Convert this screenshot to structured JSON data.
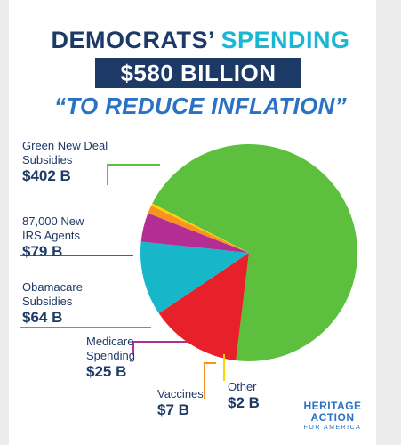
{
  "header": {
    "title_part1": "DEMOCRATS’",
    "title_part2": "SPENDING",
    "amount": "$580 BILLION",
    "subtitle": "“TO REDUCE INFLATION”"
  },
  "chart_data": {
    "type": "pie",
    "title": "DEMOCRATS’ SPENDING $580 BILLION “TO REDUCE INFLATION”",
    "total": 580,
    "unit": "B",
    "slices": [
      {
        "name": "Green New Deal\nSubsidies",
        "value": 402,
        "label": "$402 B",
        "color": "#5cbf3e"
      },
      {
        "name": "87,000 New\nIRS Agents",
        "value": 79,
        "label": "$79 B",
        "color": "#e8202a"
      },
      {
        "name": "Obamacare\nSubsidies",
        "value": 64,
        "label": "$64 B",
        "color": "#18b6c9"
      },
      {
        "name": "Medicare\nSpending",
        "value": 25,
        "label": "$25 B",
        "color": "#b22d94"
      },
      {
        "name": "Vaccines",
        "value": 7,
        "label": "$7 B",
        "color": "#f7931e"
      },
      {
        "name": "Other",
        "value": 2,
        "label": "$2 B",
        "color": "#ffd200"
      }
    ]
  },
  "logo": {
    "line1": "HERITAGE",
    "line2": "ACTION",
    "line3": "FOR AMERICA"
  }
}
